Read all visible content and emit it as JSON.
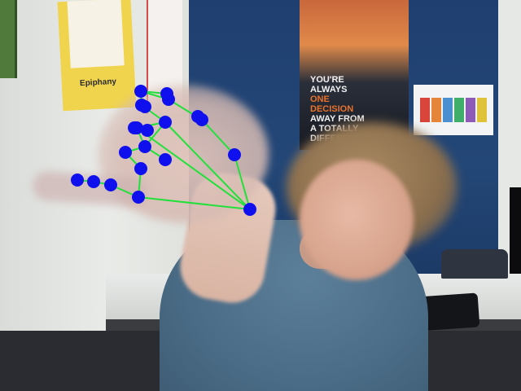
{
  "poster": {
    "lines": [
      "YOU'RE",
      "ALWAYS",
      "ONE",
      "DECISION",
      "AWAY FROM",
      "A TOTALLY",
      "DIFFERENT LIFE."
    ],
    "accent_lines": [
      "ONE",
      "DECISION"
    ]
  },
  "wall_sign": {
    "label": "Epiphany"
  },
  "overlay": {
    "line_color": "#22e03a",
    "point_color": "#1010ee",
    "points": 21
  },
  "colors": {
    "wall_blue": "#234777",
    "shirt": "#4a6b85",
    "poster_accent": "#e8732c"
  }
}
